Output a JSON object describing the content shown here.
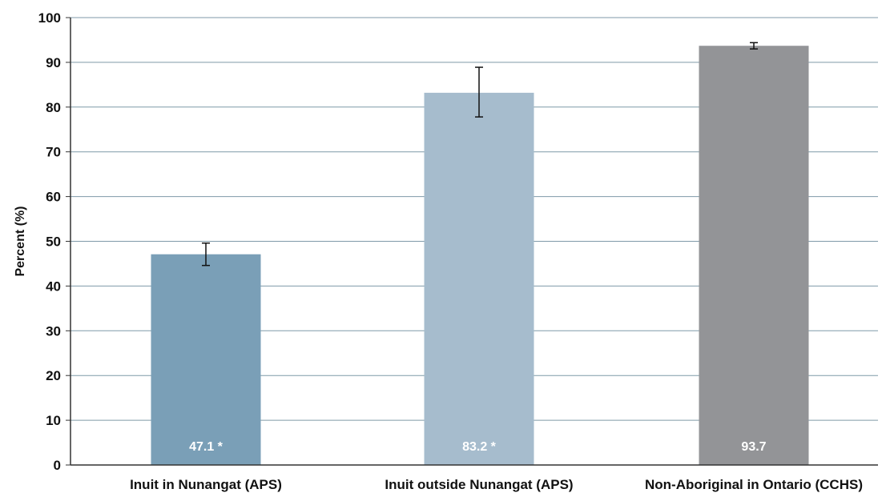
{
  "chart_data": {
    "type": "bar",
    "title": "",
    "xlabel": "",
    "ylabel": "Percent (%)",
    "ylim": [
      0,
      100
    ],
    "yticks": [
      0,
      10,
      20,
      30,
      40,
      50,
      60,
      70,
      80,
      90,
      100
    ],
    "grid": true,
    "categories": [
      "Inuit in Nunangat (APS)",
      "Inuit outside Nunangat (APS)",
      "Non-Aboriginal in Ontario (CCHS)"
    ],
    "values": [
      47.1,
      83.2,
      93.7
    ],
    "data_labels": [
      "47.1 *",
      "83.2 *",
      "93.7"
    ],
    "error_bars": [
      {
        "low": 44.6,
        "high": 49.6
      },
      {
        "low": 77.8,
        "high": 88.9
      },
      {
        "low": 93.0,
        "high": 94.4
      }
    ],
    "colors": [
      "#7a9fb7",
      "#a6bccd",
      "#939497"
    ],
    "gridline_color": "#7f9aa8",
    "axis_color": "#333333"
  }
}
